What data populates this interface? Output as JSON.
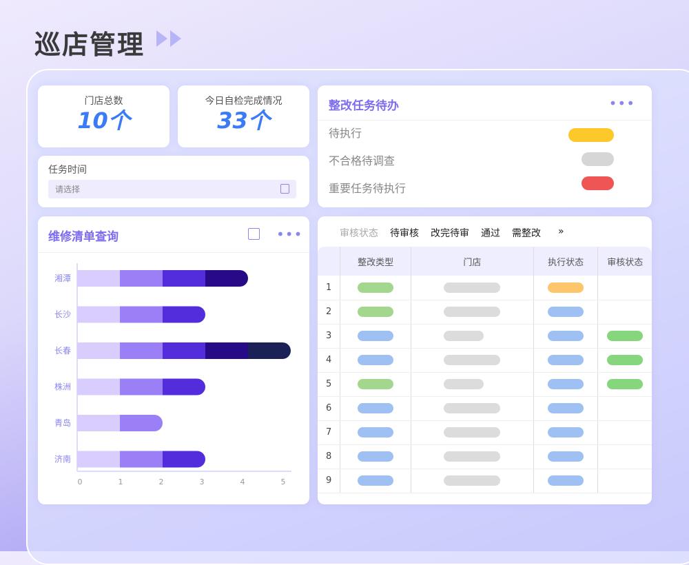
{
  "title": "巡店管理",
  "stats": [
    {
      "label": "门店总数",
      "value": "10个"
    },
    {
      "label": "今日自检完成情况",
      "value": "33个"
    }
  ],
  "task_time": {
    "label": "任务时间",
    "placeholder": "请选择",
    "icon": "calendar-icon"
  },
  "todo": {
    "title": "整改任务待办",
    "items": [
      {
        "label": "待执行",
        "color": "#fdc82a"
      },
      {
        "label": "不合格待调查",
        "color": "#d6d6d6"
      },
      {
        "label": "重要任务待执行",
        "color": "#f05555"
      }
    ]
  },
  "repair": {
    "title": "维修清单查询"
  },
  "chart_data": {
    "type": "bar",
    "orientation": "horizontal",
    "stacked": true,
    "categories": [
      "湘潭",
      "长沙",
      "长春",
      "株洲",
      "青岛",
      "济南"
    ],
    "segment_colors": [
      "#d8cdfc",
      "#9a7ff7",
      "#532ddb",
      "#270a87",
      "#1b2157"
    ],
    "values": [
      4,
      3,
      5,
      3,
      2,
      3
    ],
    "xlim": [
      0,
      5
    ],
    "xticks": [
      "0",
      "1",
      "2",
      "3",
      "4",
      "5"
    ]
  },
  "review": {
    "filter_label": "审核状态",
    "tabs": [
      "待审核",
      "改完待审",
      "通过",
      "需整改"
    ],
    "more": "»",
    "columns": [
      "",
      "整改类型",
      "门店",
      "执行状态",
      "审核状态"
    ],
    "rows": [
      {
        "n": "1",
        "type": "green",
        "store": "long",
        "exec": "orange",
        "audit": ""
      },
      {
        "n": "2",
        "type": "green",
        "store": "long",
        "exec": "blue",
        "audit": ""
      },
      {
        "n": "3",
        "type": "blue",
        "store": "short",
        "exec": "blue",
        "audit": "green"
      },
      {
        "n": "4",
        "type": "blue",
        "store": "long",
        "exec": "blue",
        "audit": "green"
      },
      {
        "n": "5",
        "type": "green",
        "store": "short",
        "exec": "blue",
        "audit": "green"
      },
      {
        "n": "6",
        "type": "blue",
        "store": "long",
        "exec": "blue",
        "audit": ""
      },
      {
        "n": "7",
        "type": "blue",
        "store": "long",
        "exec": "blue",
        "audit": ""
      },
      {
        "n": "8",
        "type": "blue",
        "store": "long",
        "exec": "blue",
        "audit": ""
      },
      {
        "n": "9",
        "type": "blue",
        "store": "long",
        "exec": "blue",
        "audit": ""
      }
    ]
  }
}
